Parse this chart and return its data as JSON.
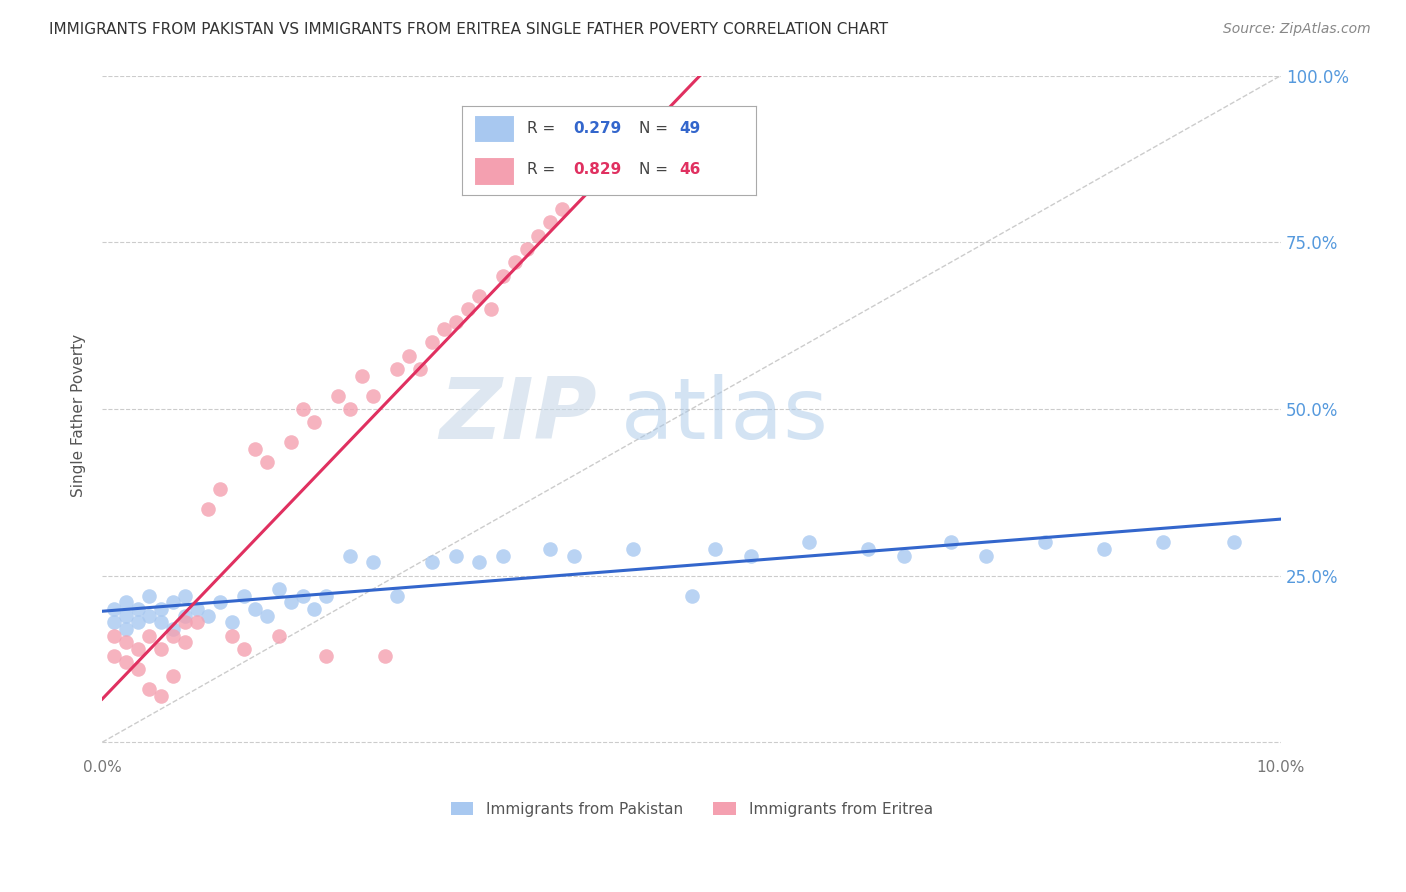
{
  "title": "IMMIGRANTS FROM PAKISTAN VS IMMIGRANTS FROM ERITREA SINGLE FATHER POVERTY CORRELATION CHART",
  "source": "Source: ZipAtlas.com",
  "ylabel": "Single Father Poverty",
  "pakistan_R": 0.279,
  "pakistan_N": 49,
  "eritrea_R": 0.829,
  "eritrea_N": 46,
  "pakistan_color": "#a8c8f0",
  "eritrea_color": "#f4a0b0",
  "pakistan_line_color": "#3366cc",
  "eritrea_line_color": "#e03060",
  "background_color": "#ffffff",
  "grid_color": "#cccccc",
  "title_color": "#333333",
  "right_axis_color": "#5599dd",
  "xlim": [
    0.0,
    0.1
  ],
  "ylim": [
    -0.02,
    1.0
  ],
  "pakistan_x": [
    0.001,
    0.001,
    0.002,
    0.002,
    0.002,
    0.003,
    0.003,
    0.004,
    0.004,
    0.005,
    0.005,
    0.006,
    0.006,
    0.007,
    0.007,
    0.008,
    0.009,
    0.01,
    0.011,
    0.012,
    0.013,
    0.014,
    0.015,
    0.016,
    0.017,
    0.018,
    0.019,
    0.021,
    0.023,
    0.025,
    0.028,
    0.03,
    0.032,
    0.034,
    0.038,
    0.04,
    0.045,
    0.05,
    0.052,
    0.055,
    0.06,
    0.065,
    0.068,
    0.072,
    0.075,
    0.08,
    0.085,
    0.09,
    0.096
  ],
  "pakistan_y": [
    0.18,
    0.2,
    0.19,
    0.17,
    0.21,
    0.18,
    0.2,
    0.19,
    0.22,
    0.18,
    0.2,
    0.17,
    0.21,
    0.19,
    0.22,
    0.2,
    0.19,
    0.21,
    0.18,
    0.22,
    0.2,
    0.19,
    0.23,
    0.21,
    0.22,
    0.2,
    0.22,
    0.28,
    0.27,
    0.22,
    0.27,
    0.28,
    0.27,
    0.28,
    0.29,
    0.28,
    0.29,
    0.22,
    0.29,
    0.28,
    0.3,
    0.29,
    0.28,
    0.3,
    0.28,
    0.3,
    0.29,
    0.3,
    0.3
  ],
  "eritrea_x": [
    0.001,
    0.001,
    0.002,
    0.002,
    0.003,
    0.003,
    0.004,
    0.004,
    0.005,
    0.005,
    0.006,
    0.006,
    0.007,
    0.007,
    0.008,
    0.009,
    0.01,
    0.011,
    0.012,
    0.013,
    0.014,
    0.015,
    0.016,
    0.017,
    0.018,
    0.019,
    0.02,
    0.021,
    0.022,
    0.023,
    0.024,
    0.025,
    0.026,
    0.027,
    0.028,
    0.029,
    0.03,
    0.031,
    0.032,
    0.033,
    0.034,
    0.035,
    0.036,
    0.037,
    0.038,
    0.039
  ],
  "eritrea_y": [
    0.16,
    0.13,
    0.15,
    0.12,
    0.14,
    0.11,
    0.08,
    0.16,
    0.07,
    0.14,
    0.16,
    0.1,
    0.18,
    0.15,
    0.18,
    0.35,
    0.38,
    0.16,
    0.14,
    0.44,
    0.42,
    0.16,
    0.45,
    0.5,
    0.48,
    0.13,
    0.52,
    0.5,
    0.55,
    0.52,
    0.13,
    0.56,
    0.58,
    0.56,
    0.6,
    0.62,
    0.63,
    0.65,
    0.67,
    0.65,
    0.7,
    0.72,
    0.74,
    0.76,
    0.78,
    0.8
  ]
}
